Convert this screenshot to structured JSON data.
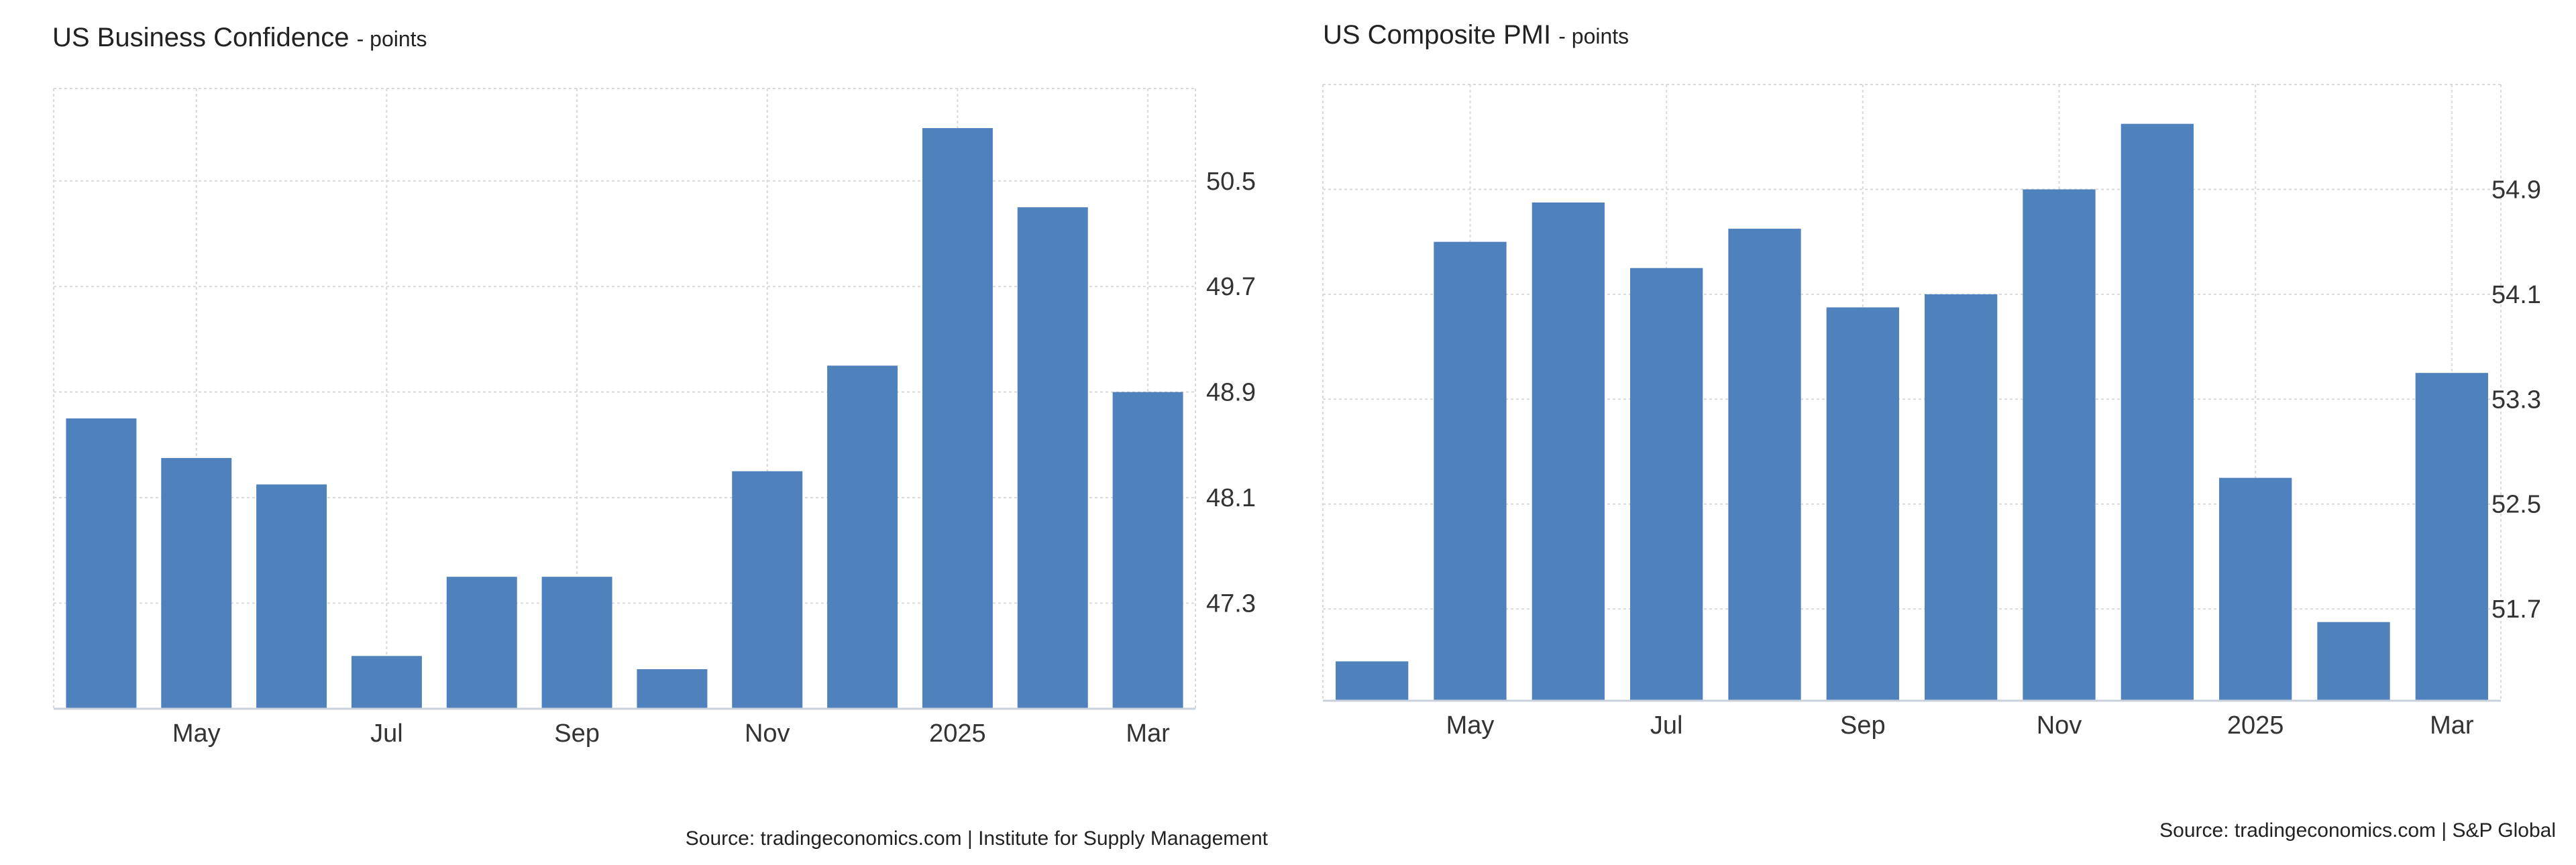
{
  "chart_data": [
    {
      "type": "bar",
      "title": "US Business Confidence",
      "unit": "points",
      "source": "Source: tradingeconomics.com | Institute for Supply Management",
      "categories": [
        "2024-04",
        "2024-05",
        "2024-06",
        "2024-07",
        "2024-08",
        "2024-09",
        "2024-10",
        "2024-11",
        "2024-12",
        "2025-01",
        "2025-02",
        "2025-03"
      ],
      "x_tick_labels": [
        {
          "category": "2024-05",
          "label": "May"
        },
        {
          "category": "2024-07",
          "label": "Jul"
        },
        {
          "category": "2024-09",
          "label": "Sep"
        },
        {
          "category": "2024-11",
          "label": "Nov"
        },
        {
          "category": "2025-01",
          "label": "2025"
        },
        {
          "category": "2025-03",
          "label": "Mar"
        }
      ],
      "values": [
        48.7,
        48.4,
        48.2,
        46.9,
        47.5,
        47.5,
        46.8,
        48.3,
        49.1,
        50.9,
        50.3,
        48.9
      ],
      "y_ticks": [
        47.3,
        48.1,
        48.9,
        49.7,
        50.5
      ],
      "ylim": [
        46.5,
        51.2
      ],
      "y_axis_position": "right",
      "grid": true,
      "bar_color": "#4f81bd"
    },
    {
      "type": "bar",
      "title": "US Composite PMI",
      "unit": "points",
      "source": "Source: tradingeconomics.com | S&P Global",
      "categories": [
        "2024-04",
        "2024-05",
        "2024-06",
        "2024-07",
        "2024-08",
        "2024-09",
        "2024-10",
        "2024-11",
        "2024-12",
        "2025-01",
        "2025-02",
        "2025-03"
      ],
      "x_tick_labels": [
        {
          "category": "2024-05",
          "label": "May"
        },
        {
          "category": "2024-07",
          "label": "Jul"
        },
        {
          "category": "2024-09",
          "label": "Sep"
        },
        {
          "category": "2024-11",
          "label": "Nov"
        },
        {
          "category": "2025-01",
          "label": "2025"
        },
        {
          "category": "2025-03",
          "label": "Mar"
        }
      ],
      "values": [
        51.3,
        54.5,
        54.8,
        54.3,
        54.6,
        54.0,
        54.1,
        54.9,
        55.4,
        52.7,
        51.6,
        53.5
      ],
      "y_ticks": [
        51.7,
        52.5,
        53.3,
        54.1,
        54.9
      ],
      "ylim": [
        51.0,
        55.7
      ],
      "y_axis_position": "right",
      "grid": true,
      "bar_color": "#4f81bd"
    }
  ]
}
